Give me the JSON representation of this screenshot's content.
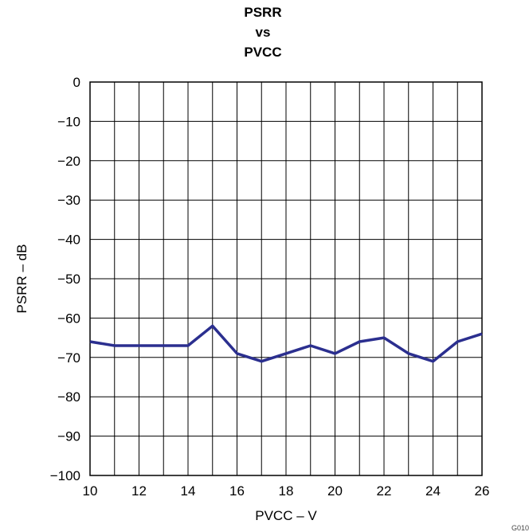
{
  "chart_data": {
    "type": "line",
    "title_lines": [
      "PSRR",
      "vs",
      "PVCC"
    ],
    "xlabel": "PVCC – V",
    "ylabel": "PSRR – dB",
    "xlim": [
      10,
      26
    ],
    "ylim": [
      -100,
      0
    ],
    "x_ticks": [
      10,
      12,
      14,
      16,
      18,
      20,
      22,
      24,
      26
    ],
    "x_tick_labels": [
      "10",
      "12",
      "14",
      "16",
      "18",
      "20",
      "22",
      "24",
      "26"
    ],
    "y_ticks": [
      0,
      -10,
      -20,
      -30,
      -40,
      -50,
      -60,
      -70,
      -80,
      -90,
      -100
    ],
    "y_tick_labels": [
      "0",
      "−10",
      "−20",
      "−30",
      "−40",
      "−50",
      "−60",
      "−70",
      "−80",
      "−90",
      "−100"
    ],
    "grid": true,
    "series": [
      {
        "x": [
          10,
          11,
          12,
          13,
          14,
          15,
          16,
          17,
          18,
          19,
          20,
          21,
          22,
          23,
          24,
          25,
          26
        ],
        "values": [
          -66,
          -67,
          -67,
          -67,
          -67,
          -62,
          -69,
          -71,
          -69,
          -67,
          -69,
          -66,
          -65,
          -69,
          -71,
          -66,
          -64
        ],
        "color": "#2b2f8f"
      }
    ]
  },
  "figure_code": "G010"
}
